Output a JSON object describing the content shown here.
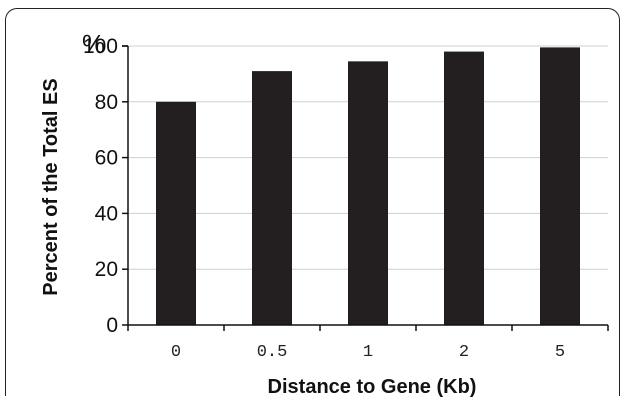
{
  "chart_data": {
    "type": "bar",
    "categories": [
      "0",
      "0.5",
      "1",
      "2",
      "5"
    ],
    "category_display": [
      "0",
      "0.5",
      "1",
      "2",
      "5"
    ],
    "values": [
      80,
      91,
      94.5,
      98,
      99.5
    ],
    "title": "",
    "xlabel": "Distance to Gene (Kb)",
    "ylabel": "Percent of the Total ES",
    "yunit": "%",
    "ylim": [
      0,
      100
    ],
    "yticks": [
      0,
      20,
      40,
      60,
      80,
      100
    ],
    "grid": true,
    "bar_color": "#231f20",
    "grid_color": "#d0d0d0"
  }
}
